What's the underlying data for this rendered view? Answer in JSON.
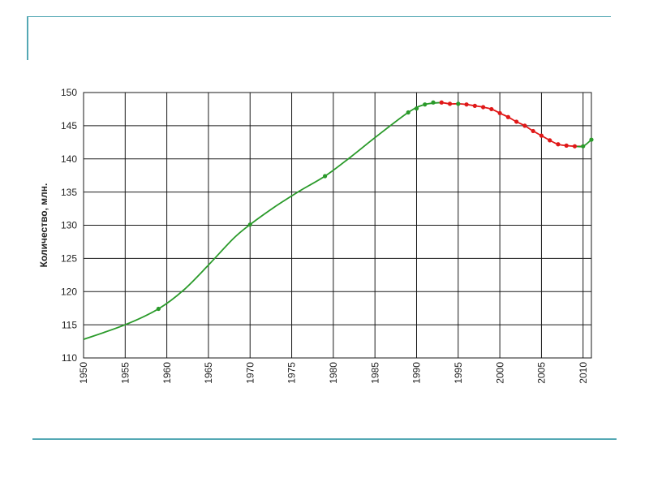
{
  "colors": {
    "accent_rule": "#54a8b4",
    "series_green": "#2a9a2a",
    "series_red": "#e01818",
    "grid": "#1a1a1a"
  },
  "chart_data": {
    "type": "line",
    "title": "",
    "xlabel": "",
    "ylabel": "Количество, млн.",
    "xlim": [
      1950,
      2011
    ],
    "ylim": [
      110,
      150
    ],
    "grid": true,
    "xticks": [
      1950,
      1955,
      1960,
      1965,
      1970,
      1975,
      1980,
      1985,
      1990,
      1995,
      2000,
      2005,
      2010
    ],
    "yticks": [
      110,
      115,
      120,
      125,
      130,
      135,
      140,
      145,
      150
    ],
    "series": [
      {
        "color": "#2a9a2a",
        "curve": [
          [
            1950,
            112.8
          ],
          [
            1955,
            115.0
          ],
          [
            1959,
            117.4
          ],
          [
            1962,
            120.2
          ],
          [
            1965,
            124.0
          ],
          [
            1968,
            128.0
          ],
          [
            1970,
            130.1
          ],
          [
            1973,
            132.8
          ],
          [
            1976,
            135.2
          ],
          [
            1979,
            137.4
          ],
          [
            1982,
            140.2
          ],
          [
            1985,
            143.2
          ],
          [
            1989,
            147.0
          ],
          [
            1991,
            148.2
          ],
          [
            1993,
            148.5
          ]
        ],
        "markers": [
          [
            1959,
            117.4
          ],
          [
            1970,
            130.1
          ],
          [
            1979,
            137.4
          ],
          [
            1989,
            147.0
          ],
          [
            1990,
            147.6
          ],
          [
            1991,
            148.2
          ],
          [
            1992,
            148.5
          ]
        ]
      },
      {
        "color": "#e01818",
        "curve": [
          [
            1993,
            148.5
          ],
          [
            1994,
            148.3
          ],
          [
            1995,
            148.3
          ],
          [
            1996,
            148.2
          ],
          [
            1997,
            148.0
          ],
          [
            1998,
            147.8
          ],
          [
            1999,
            147.5
          ],
          [
            2000,
            146.9
          ],
          [
            2001,
            146.3
          ],
          [
            2002,
            145.6
          ],
          [
            2003,
            145.0
          ],
          [
            2004,
            144.2
          ],
          [
            2005,
            143.5
          ],
          [
            2006,
            142.8
          ],
          [
            2007,
            142.2
          ],
          [
            2008,
            142.0
          ],
          [
            2009,
            141.9
          ],
          [
            2010,
            141.9
          ]
        ],
        "markers": [
          [
            1993,
            148.5
          ],
          [
            1994,
            148.3
          ],
          [
            1996,
            148.2
          ],
          [
            1997,
            148.0
          ],
          [
            1998,
            147.8
          ],
          [
            1999,
            147.5
          ],
          [
            2000,
            146.9
          ],
          [
            2001,
            146.3
          ],
          [
            2002,
            145.6
          ],
          [
            2003,
            145.0
          ],
          [
            2004,
            144.2
          ],
          [
            2005,
            143.5
          ],
          [
            2006,
            142.8
          ],
          [
            2007,
            142.2
          ],
          [
            2008,
            142.0
          ],
          [
            2009,
            141.9
          ]
        ]
      },
      {
        "color": "#2a9a2a",
        "curve": [
          [
            2009,
            141.9
          ],
          [
            2010,
            141.9
          ],
          [
            2011,
            142.9
          ]
        ],
        "markers": [
          [
            1995,
            148.3
          ],
          [
            2010,
            141.9
          ],
          [
            2011,
            142.9
          ]
        ]
      }
    ]
  }
}
